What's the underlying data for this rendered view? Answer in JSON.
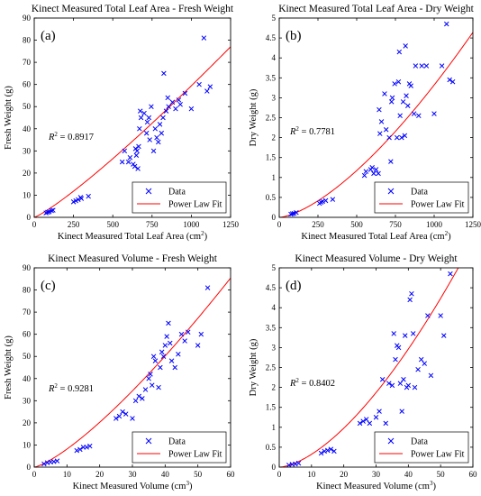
{
  "chart_data": [
    {
      "type": "scatter",
      "panel_label": "(a)",
      "title": "Kinect Measured Total Leaf Area - Fresh Weight",
      "xlabel": "Kinect Measured Total Leaf Area (cm",
      "xlabel_sup": "2",
      "xlabel_suffix": ")",
      "ylabel": "Fresh Weight (g)",
      "xlim": [
        0,
        1250
      ],
      "ylim": [
        0,
        90
      ],
      "xticks": [
        0,
        250,
        500,
        750,
        1000,
        1250
      ],
      "yticks": [
        0,
        10,
        20,
        30,
        40,
        50,
        60,
        70,
        80,
        90
      ],
      "r2_label": "R",
      "r2_value": " = 0.8917",
      "legend": {
        "data": "Data",
        "fit": "Power Law Fit",
        "position": "bottom-right"
      },
      "fit": {
        "a": 0.019,
        "b": 1.165
      },
      "points": [
        [
          75,
          2
        ],
        [
          85,
          2.3
        ],
        [
          95,
          2.5
        ],
        [
          110,
          3
        ],
        [
          120,
          3.2
        ],
        [
          250,
          7
        ],
        [
          265,
          7.5
        ],
        [
          280,
          8
        ],
        [
          295,
          9
        ],
        [
          300,
          8.5
        ],
        [
          345,
          9.5
        ],
        [
          560,
          25
        ],
        [
          575,
          30
        ],
        [
          600,
          25
        ],
        [
          610,
          27
        ],
        [
          630,
          24
        ],
        [
          640,
          23
        ],
        [
          645,
          31
        ],
        [
          650,
          28
        ],
        [
          655,
          30
        ],
        [
          660,
          22
        ],
        [
          665,
          32
        ],
        [
          670,
          40
        ],
        [
          675,
          48
        ],
        [
          680,
          45
        ],
        [
          700,
          47
        ],
        [
          715,
          38
        ],
        [
          720,
          43
        ],
        [
          730,
          45
        ],
        [
          735,
          35
        ],
        [
          745,
          50
        ],
        [
          760,
          30
        ],
        [
          770,
          40
        ],
        [
          780,
          36
        ],
        [
          790,
          34
        ],
        [
          800,
          42
        ],
        [
          810,
          38
        ],
        [
          820,
          45
        ],
        [
          825,
          65
        ],
        [
          840,
          48
        ],
        [
          850,
          54
        ],
        [
          855,
          50
        ],
        [
          880,
          52
        ],
        [
          900,
          49
        ],
        [
          920,
          53
        ],
        [
          930,
          51
        ],
        [
          960,
          56
        ],
        [
          1000,
          49
        ],
        [
          1050,
          60
        ],
        [
          1080,
          81
        ],
        [
          1100,
          57
        ],
        [
          1120,
          59
        ]
      ]
    },
    {
      "type": "scatter",
      "panel_label": "(b)",
      "title": "Kinect Measured Total Leaf Area - Dry Weight",
      "xlabel": "Kinect Measured Total Leaf Area (cm",
      "xlabel_sup": "2",
      "xlabel_suffix": ")",
      "ylabel": "Dry Weight (g)",
      "xlim": [
        0,
        1250
      ],
      "ylim": [
        0,
        5
      ],
      "xticks": [
        0,
        250,
        500,
        750,
        1000,
        1250
      ],
      "yticks": [
        0,
        0.5,
        1,
        1.5,
        2,
        2.5,
        3,
        3.5,
        4,
        4.5,
        5
      ],
      "r2_label": "R",
      "r2_value": " = 0.7781",
      "legend": {
        "data": "Data",
        "fit": "Power Law Fit",
        "position": "bottom-right"
      },
      "fit": {
        "a": 0.000105,
        "b": 1.5
      },
      "points": [
        [
          75,
          0.08
        ],
        [
          85,
          0.09
        ],
        [
          95,
          0.1
        ],
        [
          110,
          0.12
        ],
        [
          260,
          0.35
        ],
        [
          270,
          0.38
        ],
        [
          280,
          0.4
        ],
        [
          300,
          0.42
        ],
        [
          345,
          0.45
        ],
        [
          550,
          1.05
        ],
        [
          560,
          1.15
        ],
        [
          590,
          1.2
        ],
        [
          600,
          1.25
        ],
        [
          610,
          1.1
        ],
        [
          625,
          1.2
        ],
        [
          640,
          1.1
        ],
        [
          645,
          2.7
        ],
        [
          650,
          2.1
        ],
        [
          660,
          2.4
        ],
        [
          680,
          3.1
        ],
        [
          690,
          2.2
        ],
        [
          710,
          2.0
        ],
        [
          720,
          1.4
        ],
        [
          725,
          2.9
        ],
        [
          730,
          3.0
        ],
        [
          745,
          3.35
        ],
        [
          760,
          2.0
        ],
        [
          770,
          3.4
        ],
        [
          775,
          4.15
        ],
        [
          780,
          2.55
        ],
        [
          790,
          2.0
        ],
        [
          800,
          2.9
        ],
        [
          810,
          2.05
        ],
        [
          815,
          4.3
        ],
        [
          820,
          3.05
        ],
        [
          830,
          2.8
        ],
        [
          840,
          3.35
        ],
        [
          850,
          3.3
        ],
        [
          870,
          2.6
        ],
        [
          880,
          3.8
        ],
        [
          900,
          2.55
        ],
        [
          920,
          3.8
        ],
        [
          950,
          3.8
        ],
        [
          1000,
          2.6
        ],
        [
          1050,
          3.8
        ],
        [
          1080,
          4.85
        ],
        [
          1100,
          3.45
        ],
        [
          1120,
          3.4
        ]
      ]
    },
    {
      "type": "scatter",
      "panel_label": "(c)",
      "title": "Kinect Measured Volume - Fresh Weight",
      "xlabel": "Kinect Measured Volume (cm",
      "xlabel_sup": "3",
      "xlabel_suffix": ")",
      "ylabel": "Fresh Weight (g)",
      "xlim": [
        0,
        60
      ],
      "ylim": [
        0,
        90
      ],
      "xticks": [
        0,
        10,
        20,
        30,
        40,
        50,
        60
      ],
      "yticks": [
        0,
        10,
        20,
        30,
        40,
        50,
        60,
        70,
        80,
        90
      ],
      "r2_label": "R",
      "r2_value": " = 0.9281",
      "legend": {
        "data": "Data",
        "fit": "Power Law Fit",
        "position": "bottom-right"
      },
      "fit": {
        "a": 0.4,
        "b": 1.31
      },
      "points": [
        [
          3,
          1.5
        ],
        [
          4,
          2
        ],
        [
          5,
          2.3
        ],
        [
          6,
          2.5
        ],
        [
          7,
          2.8
        ],
        [
          13,
          7.5
        ],
        [
          14,
          8
        ],
        [
          15,
          9
        ],
        [
          16,
          9
        ],
        [
          17,
          9.5
        ],
        [
          25,
          22
        ],
        [
          26,
          23
        ],
        [
          27,
          25
        ],
        [
          28,
          24
        ],
        [
          30,
          22
        ],
        [
          31,
          30
        ],
        [
          32,
          32
        ],
        [
          33,
          31
        ],
        [
          34,
          35
        ],
        [
          35,
          40
        ],
        [
          35.5,
          42
        ],
        [
          36,
          37
        ],
        [
          36.5,
          50
        ],
        [
          37,
          48
        ],
        [
          38,
          36
        ],
        [
          38.5,
          45
        ],
        [
          39,
          52
        ],
        [
          39.5,
          50
        ],
        [
          40,
          55
        ],
        [
          40.5,
          59
        ],
        [
          41,
          65
        ],
        [
          41.5,
          56
        ],
        [
          42,
          48
        ],
        [
          43,
          45
        ],
        [
          44,
          51
        ],
        [
          45,
          60
        ],
        [
          46,
          57
        ],
        [
          47,
          61
        ],
        [
          50,
          55
        ],
        [
          51,
          60
        ],
        [
          53,
          81
        ]
      ]
    },
    {
      "type": "scatter",
      "panel_label": "(d)",
      "title": "Kinect Measured Volume - Dry Weight",
      "xlabel": "Kinect Measured Volume (cm",
      "xlabel_sup": "3",
      "xlabel_suffix": ")",
      "ylabel": "Dry Weight (g)",
      "xlim": [
        0,
        60
      ],
      "ylim": [
        0,
        5
      ],
      "xticks": [
        0,
        10,
        20,
        30,
        40,
        50,
        60
      ],
      "yticks": [
        0,
        0.5,
        1,
        1.5,
        2,
        2.5,
        3,
        3.5,
        4,
        4.5,
        5
      ],
      "r2_label": "R",
      "r2_value": " = 0.8402",
      "legend": {
        "data": "Data",
        "fit": "Power Law Fit",
        "position": "bottom-right"
      },
      "fit": {
        "a": 0.0081,
        "b": 1.6
      },
      "points": [
        [
          3,
          0.05
        ],
        [
          4,
          0.07
        ],
        [
          5,
          0.08
        ],
        [
          6,
          0.1
        ],
        [
          13,
          0.35
        ],
        [
          14,
          0.4
        ],
        [
          15,
          0.42
        ],
        [
          16,
          0.45
        ],
        [
          17,
          0.4
        ],
        [
          25,
          1.1
        ],
        [
          26,
          1.15
        ],
        [
          27,
          1.2
        ],
        [
          28,
          1.1
        ],
        [
          30,
          1.25
        ],
        [
          31,
          1.4
        ],
        [
          32,
          2.2
        ],
        [
          33,
          1.1
        ],
        [
          34,
          2.1
        ],
        [
          35,
          2.05
        ],
        [
          35.5,
          3.35
        ],
        [
          36,
          2.7
        ],
        [
          36.5,
          3.05
        ],
        [
          37,
          3.0
        ],
        [
          37.5,
          2.1
        ],
        [
          38,
          1.4
        ],
        [
          38.5,
          2.2
        ],
        [
          39,
          3.3
        ],
        [
          39.5,
          2.0
        ],
        [
          40,
          2.05
        ],
        [
          40.5,
          4.2
        ],
        [
          41,
          4.35
        ],
        [
          41.5,
          3.35
        ],
        [
          42,
          2.0
        ],
        [
          43,
          2.45
        ],
        [
          44,
          2.7
        ],
        [
          45,
          2.6
        ],
        [
          46,
          3.8
        ],
        [
          47,
          2.3
        ],
        [
          50,
          3.8
        ],
        [
          51,
          3.3
        ],
        [
          53,
          4.85
        ]
      ]
    }
  ]
}
